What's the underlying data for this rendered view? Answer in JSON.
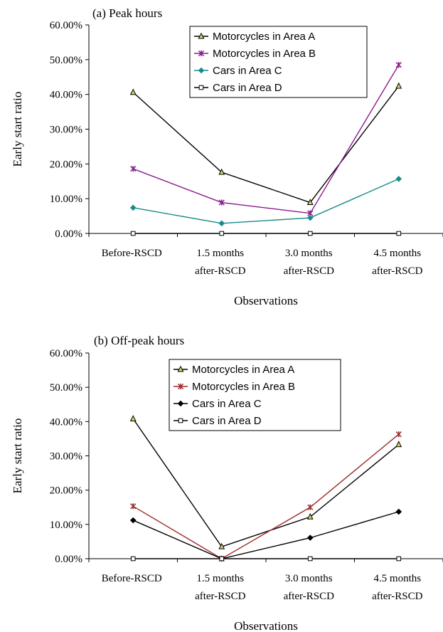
{
  "chart_data": [
    {
      "type": "line",
      "title": "(a) Peak hours",
      "xlabel": "Observations",
      "ylabel": "Early start ratio",
      "ylim": [
        0,
        60
      ],
      "y_ticks": [
        "0.00%",
        "10.00%",
        "20.00%",
        "30.00%",
        "40.00%",
        "50.00%",
        "60.00%"
      ],
      "categories": [
        [
          "Before-RSCD"
        ],
        [
          "1.5 months",
          "after-RSCD"
        ],
        [
          "3.0 months",
          "after-RSCD"
        ],
        [
          "4.5 months",
          "after-RSCD"
        ]
      ],
      "legend_position": "top-right",
      "series": [
        {
          "name": "Motorcycles in Area A",
          "values": [
            40.6,
            17.6,
            8.9,
            42.4
          ],
          "color": "#000000",
          "marker": "triangle"
        },
        {
          "name": "Motorcycles in Area B",
          "values": [
            18.6,
            8.9,
            5.8,
            48.5
          ],
          "color": "#8b1a8b",
          "marker": "star"
        },
        {
          "name": "Cars in Area C",
          "values": [
            7.4,
            2.9,
            4.5,
            15.7
          ],
          "color": "#1a8a8a",
          "marker": "diamond"
        },
        {
          "name": "Cars in Area D",
          "values": [
            0,
            0,
            0,
            0
          ],
          "color": "#000000",
          "marker": "square"
        }
      ]
    },
    {
      "type": "line",
      "title": "(b) Off-peak hours",
      "xlabel": "Observations",
      "ylabel": "Early start ratio",
      "ylim": [
        0,
        60
      ],
      "y_ticks": [
        "0.00%",
        "10.00%",
        "20.00%",
        "30.00%",
        "40.00%",
        "50.00%",
        "60.00%"
      ],
      "categories": [
        [
          "Before-RSCD"
        ],
        [
          "1.5 months",
          "after-RSCD"
        ],
        [
          "3.0 months",
          "after-RSCD"
        ],
        [
          "4.5 months",
          "after-RSCD"
        ]
      ],
      "legend_position": "top-center",
      "series": [
        {
          "name": "Motorcycles in Area A",
          "values": [
            40.8,
            3.5,
            12.2,
            33.3
          ],
          "color": "#000000",
          "marker": "triangle"
        },
        {
          "name": "Motorcycles in Area B",
          "values": [
            15.3,
            0,
            15.0,
            36.3
          ],
          "color": "#9e2a2a",
          "marker": "star"
        },
        {
          "name": "Cars in Area C",
          "values": [
            11.2,
            0,
            6.1,
            13.7
          ],
          "color": "#000000",
          "marker": "diamond"
        },
        {
          "name": "Cars in Area D",
          "values": [
            0,
            0,
            0,
            0
          ],
          "color": "#000000",
          "marker": "square"
        }
      ]
    }
  ]
}
